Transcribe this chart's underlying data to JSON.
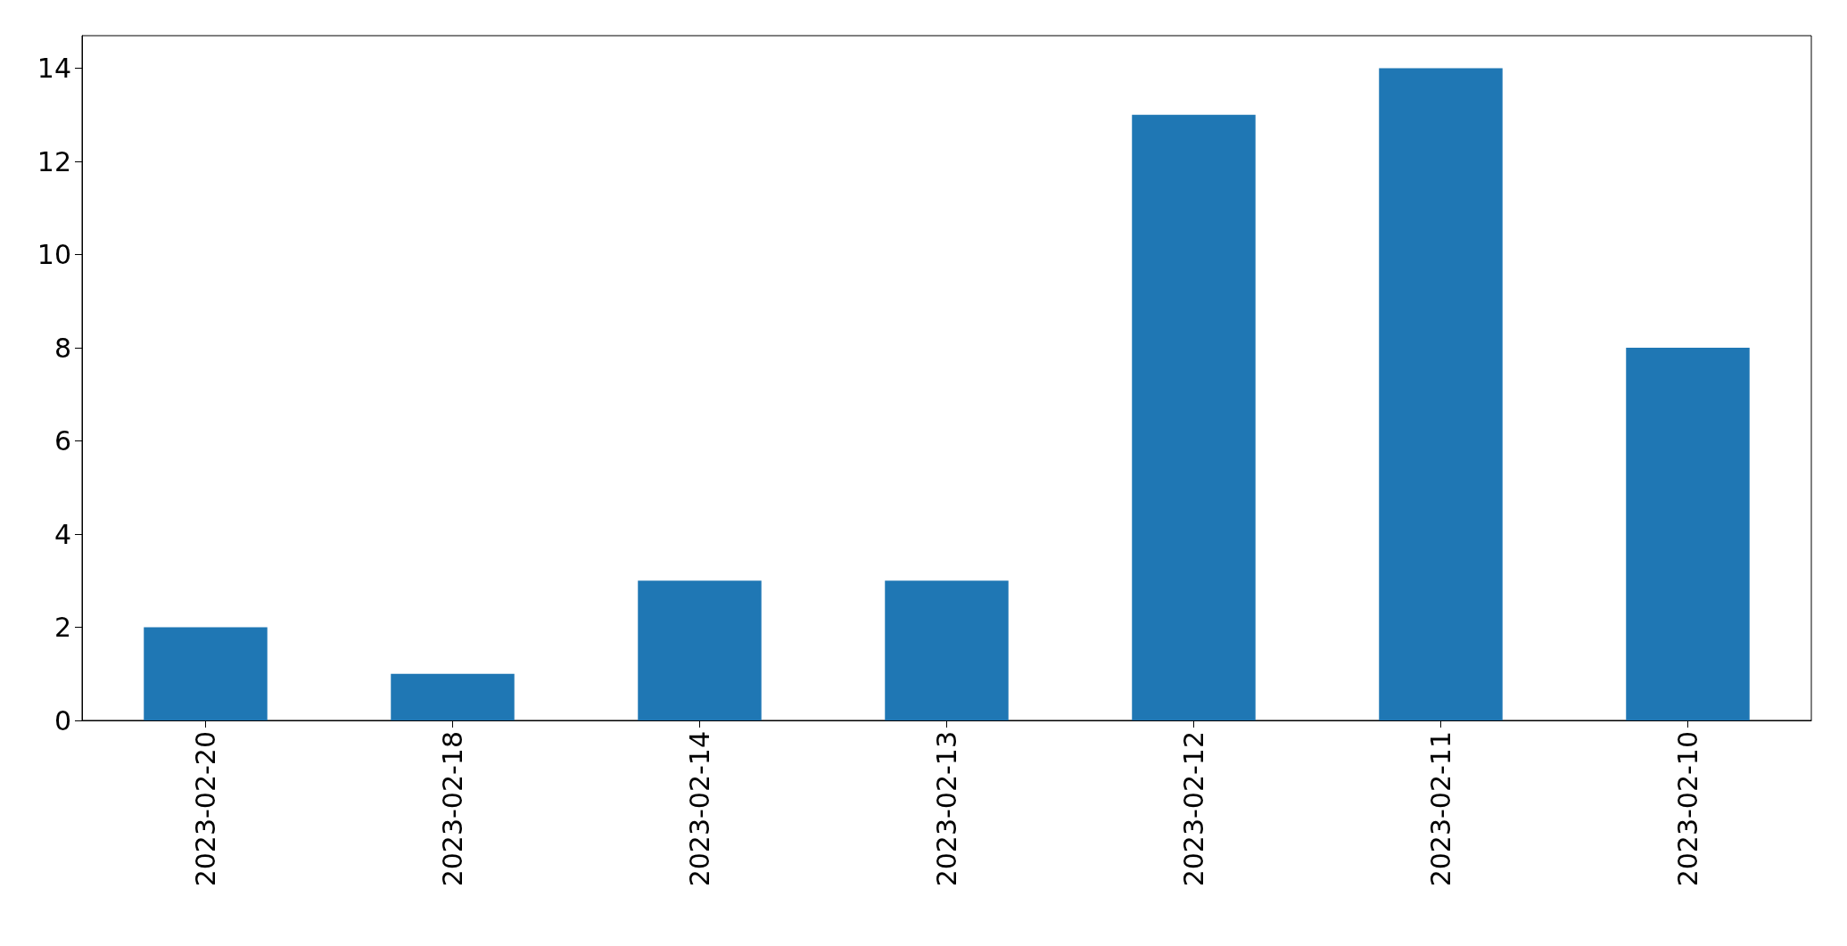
{
  "chart_data": {
    "type": "bar",
    "categories": [
      "2023-02-20",
      "2023-02-18",
      "2023-02-14",
      "2023-02-13",
      "2023-02-12",
      "2023-02-11",
      "2023-02-10"
    ],
    "values": [
      2,
      1,
      3,
      3,
      13,
      14,
      8
    ],
    "color": "#1f77b4",
    "ylim": [
      0,
      14.7
    ],
    "yticks": [
      0,
      2,
      4,
      6,
      8,
      10,
      12,
      14
    ],
    "grid": false
  }
}
